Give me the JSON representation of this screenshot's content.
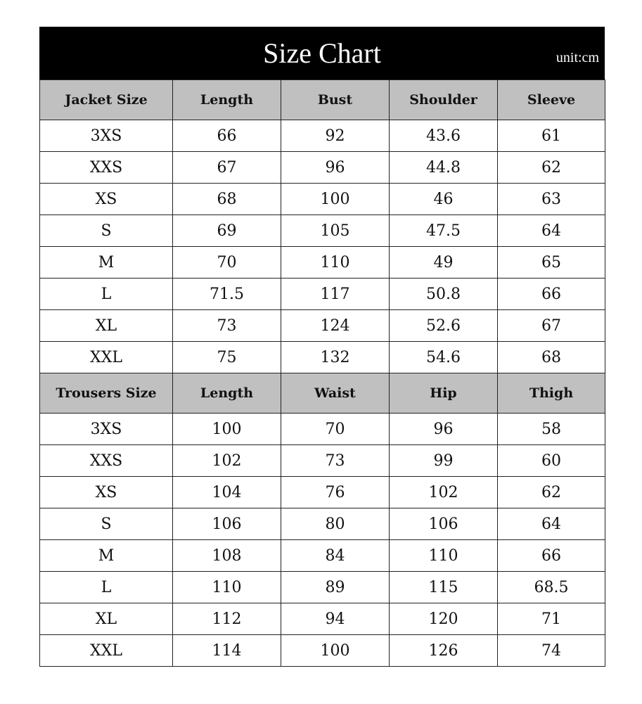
{
  "title": "Size Chart",
  "unit": "unit:cm",
  "jacket": {
    "headers": [
      "Jacket Size",
      "Length",
      "Bust",
      "Shoulder",
      "Sleeve"
    ],
    "rows": [
      [
        "3XS",
        "66",
        "92",
        "43.6",
        "61"
      ],
      [
        "XXS",
        "67",
        "96",
        "44.8",
        "62"
      ],
      [
        "XS",
        "68",
        "100",
        "46",
        "63"
      ],
      [
        "S",
        "69",
        "105",
        "47.5",
        "64"
      ],
      [
        "M",
        "70",
        "110",
        "49",
        "65"
      ],
      [
        "L",
        "71.5",
        "117",
        "50.8",
        "66"
      ],
      [
        "XL",
        "73",
        "124",
        "52.6",
        "67"
      ],
      [
        "XXL",
        "75",
        "132",
        "54.6",
        "68"
      ]
    ]
  },
  "trousers": {
    "headers": [
      "Trousers Size",
      "Length",
      "Waist",
      "Hip",
      "Thigh"
    ],
    "rows": [
      [
        "3XS",
        "100",
        "70",
        "96",
        "58"
      ],
      [
        "XXS",
        "102",
        "73",
        "99",
        "60"
      ],
      [
        "XS",
        "104",
        "76",
        "102",
        "62"
      ],
      [
        "S",
        "106",
        "80",
        "106",
        "64"
      ],
      [
        "M",
        "108",
        "84",
        "110",
        "66"
      ],
      [
        "L",
        "110",
        "89",
        "115",
        "68.5"
      ],
      [
        "XL",
        "112",
        "94",
        "120",
        "71"
      ],
      [
        "XXL",
        "114",
        "100",
        "126",
        "74"
      ]
    ]
  },
  "colors": {
    "title_bg": "#000000",
    "header_bg": "#c0c0c0"
  }
}
